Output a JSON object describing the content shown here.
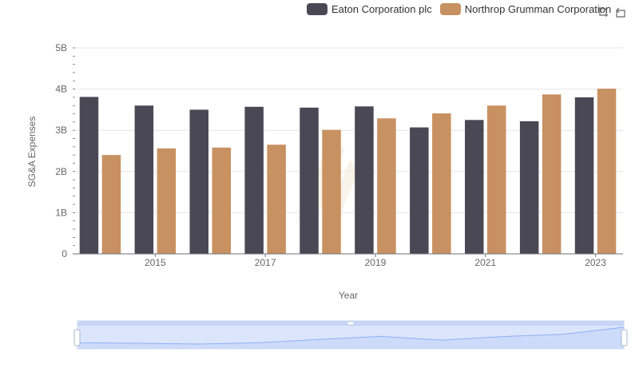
{
  "legend": {
    "series_a": "Eaton Corporation plc",
    "series_b": "Northrop Grumman Corporation"
  },
  "toolbar": {
    "zoom_icon": "data-zoom-icon",
    "reset_icon": "restore-icon"
  },
  "colors": {
    "series_a": "#4a4855",
    "series_b": "#c89162",
    "grid": "#e6e6e6",
    "axis": "#6e7079",
    "zoom_fill": "#dbe5fb",
    "zoom_line": "#8fb0f7",
    "watermark": "#f7ebda"
  },
  "chart_data": {
    "type": "bar",
    "xlabel": "Year",
    "ylabel": "SG&A Expenses",
    "x_tick_labels": [
      "2015",
      "2017",
      "2019",
      "2021",
      "2023"
    ],
    "y_tick_labels": [
      "0",
      "1B",
      "2B",
      "3B",
      "4B",
      "5B"
    ],
    "ylim": [
      0,
      5000000000
    ],
    "categories": [
      "2014",
      "2015",
      "2016",
      "2017",
      "2018",
      "2019",
      "2020",
      "2021",
      "2022",
      "2023"
    ],
    "series": [
      {
        "name": "Eaton Corporation plc",
        "values": [
          3810000000,
          3600000000,
          3500000000,
          3570000000,
          3550000000,
          3580000000,
          3070000000,
          3250000000,
          3220000000,
          3800000000
        ]
      },
      {
        "name": "Northrop Grumman Corporation",
        "values": [
          2400000000,
          2560000000,
          2580000000,
          2650000000,
          3010000000,
          3290000000,
          3410000000,
          3600000000,
          3870000000,
          4010000000
        ]
      }
    ],
    "grid": true,
    "legend_position": "top-right",
    "data_zoom": true
  }
}
